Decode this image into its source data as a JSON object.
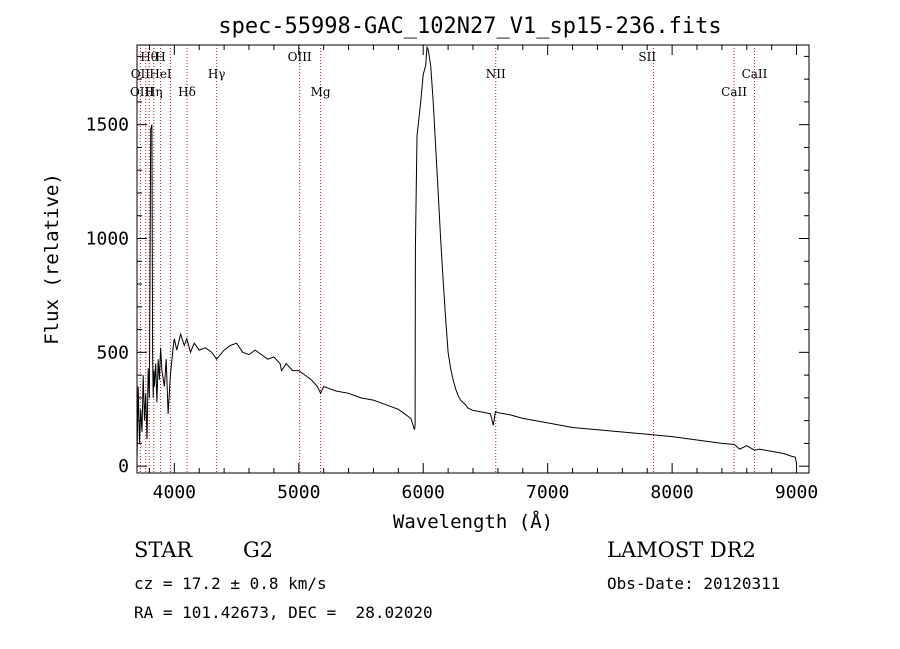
{
  "chart_data": {
    "type": "line",
    "title": "spec-55998-GAC_102N27_V1_sp15-236.fits",
    "xlabel": "Wavelength (Å)",
    "ylabel": "Flux (relative)",
    "xlim": [
      3700,
      9100
    ],
    "ylim": [
      -30,
      1850
    ],
    "xticks": [
      4000,
      5000,
      6000,
      7000,
      8000,
      9000
    ],
    "yticks": [
      0,
      500,
      1000,
      1500
    ],
    "series": [
      {
        "x": [
          3700,
          3710,
          3720,
          3730,
          3740,
          3750,
          3760,
          3770,
          3780,
          3790,
          3800,
          3810,
          3820,
          3825,
          3830,
          3835,
          3840,
          3850,
          3860,
          3870,
          3880,
          3890,
          3900,
          3920,
          3935,
          3950,
          3968,
          3990,
          4000,
          4020,
          4050,
          4080,
          4100,
          4130,
          4160,
          4200,
          4250,
          4300,
          4340,
          4400,
          4450,
          4500,
          4550,
          4600,
          4650,
          4700,
          4750,
          4800,
          4850,
          4861,
          4900,
          4950,
          5000,
          5050,
          5100,
          5150,
          5175,
          5200,
          5250,
          5300,
          5400,
          5500,
          5600,
          5700,
          5800,
          5850,
          5900,
          5930,
          5935,
          5937,
          5950,
          5980,
          6000,
          6020,
          6030,
          6040,
          6060,
          6080,
          6100,
          6120,
          6140,
          6160,
          6180,
          6200,
          6220,
          6240,
          6260,
          6280,
          6300,
          6320,
          6340,
          6360,
          6400,
          6450,
          6500,
          6540,
          6563,
          6580,
          6600,
          6650,
          6700,
          6800,
          6900,
          7000,
          7200,
          7400,
          7600,
          7800,
          8000,
          8200,
          8400,
          8500,
          8542,
          8600,
          8662,
          8700,
          8800,
          8900,
          8950,
          8990,
          9000
        ],
        "y": [
          30,
          350,
          100,
          250,
          150,
          400,
          200,
          320,
          120,
          430,
          300,
          1480,
          1500,
          500,
          300,
          420,
          350,
          450,
          280,
          470,
          380,
          520,
          420,
          350,
          470,
          230,
          400,
          520,
          560,
          510,
          580,
          530,
          560,
          500,
          540,
          510,
          520,
          500,
          470,
          510,
          530,
          540,
          500,
          490,
          510,
          490,
          470,
          480,
          450,
          420,
          450,
          420,
          420,
          400,
          380,
          350,
          320,
          350,
          340,
          330,
          320,
          300,
          290,
          270,
          250,
          230,
          210,
          160,
          180,
          960,
          1450,
          1600,
          1720,
          1760,
          1840,
          1830,
          1760,
          1600,
          1400,
          1200,
          1000,
          820,
          650,
          500,
          430,
          380,
          340,
          310,
          290,
          280,
          270,
          255,
          245,
          240,
          235,
          230,
          180,
          240,
          235,
          230,
          225,
          210,
          200,
          190,
          170,
          160,
          150,
          140,
          130,
          115,
          100,
          95,
          75,
          90,
          70,
          75,
          65,
          55,
          45,
          40,
          10
        ]
      }
    ],
    "line_markers": [
      {
        "label": "Hθ",
        "x": 3798,
        "row": 1
      },
      {
        "label": "H",
        "x": 3889,
        "row": 1
      },
      {
        "label": "OII",
        "x": 3727,
        "row": 2
      },
      {
        "label": "HeI",
        "x": 3889,
        "row": 2
      },
      {
        "label": "Hγ",
        "x": 4340,
        "row": 2
      },
      {
        "label": "OIII",
        "x": 5007,
        "row": 1
      },
      {
        "label": "NII",
        "x": 6583,
        "row": 2
      },
      {
        "label": "SII",
        "x": 7800,
        "row": 1
      },
      {
        "label": "CaII",
        "x": 8662,
        "row": 2
      },
      {
        "label": "OIII",
        "x": 3740,
        "row": 3
      },
      {
        "label": "Hη",
        "x": 3835,
        "row": 3
      },
      {
        "label": "Hδ",
        "x": 4102,
        "row": 3
      },
      {
        "label": "Mg",
        "x": 5175,
        "row": 3
      },
      {
        "label": "CaII",
        "x": 8498,
        "row": 3
      }
    ],
    "marker_lines_x": [
      3727,
      3770,
      3798,
      3835,
      3889,
      3968,
      4102,
      4340,
      5007,
      5175,
      6583,
      7850,
      8498,
      8662
    ]
  },
  "info": {
    "class_label": "STAR",
    "subclass": "G2",
    "survey": "LAMOST DR2",
    "cz": "cz = 17.2 ± 0.8 km/s",
    "obs_date": "Obs-Date: 20120311",
    "coords": "RA = 101.42673, DEC =  28.02020"
  }
}
